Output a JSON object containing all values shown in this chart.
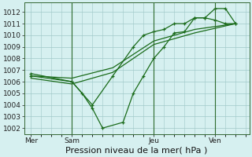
{
  "title": "Pression niveau de la mer( hPa )",
  "bg_color": "#d6f0f0",
  "plot_bg_color": "#d6f0f0",
  "grid_color": "#a0c8c8",
  "line_color": "#1a6b1a",
  "ylim": [
    1001.5,
    1012.8
  ],
  "yticks": [
    1002,
    1003,
    1004,
    1005,
    1006,
    1007,
    1008,
    1009,
    1010,
    1011,
    1012
  ],
  "xtick_labels": [
    "Mer",
    "Sam",
    "Jeu",
    "Ven"
  ],
  "xtick_positions": [
    0,
    24,
    72,
    108
  ],
  "xlim": [
    -4,
    128
  ],
  "vline_positions": [
    24,
    72,
    108
  ],
  "line1_x": [
    0,
    24,
    30,
    36,
    42,
    54,
    60,
    66,
    72,
    78,
    84,
    90,
    96,
    102,
    108,
    114,
    120
  ],
  "line1_y": [
    1006.7,
    1006.0,
    1005.0,
    1003.7,
    1002.0,
    1002.5,
    1005.0,
    1006.5,
    1008.0,
    1009.0,
    1010.2,
    1010.3,
    1011.5,
    1011.5,
    1012.3,
    1012.3,
    1011.0
  ],
  "line2_x": [
    0,
    24,
    36,
    48,
    60,
    66,
    72,
    78,
    84,
    90,
    96,
    102,
    108,
    114,
    120
  ],
  "line2_y": [
    1006.5,
    1006.0,
    1004.0,
    1006.5,
    1009.0,
    1010.0,
    1010.3,
    1010.5,
    1011.0,
    1011.0,
    1011.5,
    1011.5,
    1011.3,
    1011.0,
    1011.0
  ],
  "line3_x": [
    0,
    24,
    48,
    72,
    96,
    120
  ],
  "line3_y": [
    1006.5,
    1006.3,
    1007.2,
    1009.5,
    1010.5,
    1011.0
  ],
  "line4_x": [
    0,
    24,
    48,
    72,
    96,
    120
  ],
  "line4_y": [
    1006.3,
    1005.8,
    1006.8,
    1009.2,
    1010.2,
    1011.0
  ],
  "xlabel_fontsize": 8,
  "tick_fontsize": 6.5
}
